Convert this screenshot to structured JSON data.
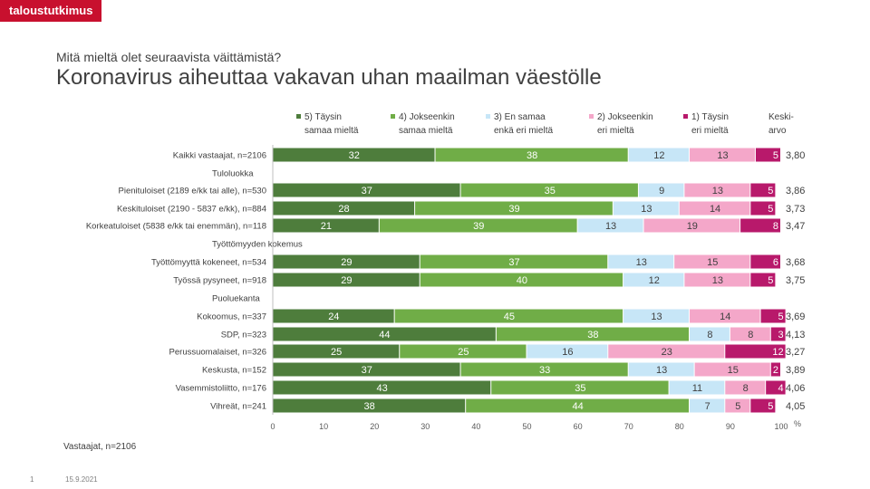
{
  "brand": "taloustutkimus",
  "header": {
    "subtitle": "Mitä mieltä olet seuraavista väittämistä?",
    "title": "Koronavirus aiheuttaa vakavan uhan maailman väestölle"
  },
  "footer": {
    "base": "Vastaajat, n=2106",
    "page": "1",
    "date": "15.9.2021"
  },
  "colors": {
    "series": [
      "#4e7d3c",
      "#70ad47",
      "#c7e6f7",
      "#f4a7c9",
      "#b8196b"
    ],
    "text_dark_bg": "#ffffff",
    "text_light_bg": "#404040"
  },
  "chart_data": {
    "type": "bar",
    "orientation": "horizontal",
    "stacked": true,
    "xlim": [
      0,
      100
    ],
    "xticks": [
      "0",
      "10",
      "20",
      "30",
      "40",
      "50",
      "60",
      "70",
      "80",
      "90",
      "100"
    ],
    "xunit": "%",
    "legend": [
      {
        "name": "5) Täysin samaa mieltä",
        "lines": [
          "5) Täysin",
          "samaa mieltä"
        ]
      },
      {
        "name": "4) Jokseenkin samaa mieltä",
        "lines": [
          "4) Jokseenkin",
          "samaa mieltä"
        ]
      },
      {
        "name": "3) En samaa enkä eri mieltä",
        "lines": [
          "3) En samaa",
          "enkä eri mieltä"
        ]
      },
      {
        "name": "2) Jokseenkin eri mieltä",
        "lines": [
          "2) Jokseenkin",
          "eri mieltä"
        ]
      },
      {
        "name": "1) Täysin eri mieltä",
        "lines": [
          "1) Täysin",
          "eri mieltä"
        ]
      }
    ],
    "mean_header": [
      "Keski-",
      "arvo"
    ],
    "rows": [
      {
        "kind": "bar",
        "label": "Kaikki vastaajat, n=2106",
        "values": [
          32,
          38,
          12,
          13,
          5
        ],
        "mean": "3,80"
      },
      {
        "kind": "group",
        "label": "Tuloluokka"
      },
      {
        "kind": "bar",
        "label": "Pienituloiset (2189 e/kk tai alle), n=530",
        "values": [
          37,
          35,
          9,
          13,
          5
        ],
        "mean": "3,86"
      },
      {
        "kind": "bar",
        "label": "Keskituloiset (2190 - 5837 e/kk), n=884",
        "values": [
          28,
          39,
          13,
          14,
          5
        ],
        "mean": "3,73"
      },
      {
        "kind": "bar",
        "label": "Korkeatuloiset (5838 e/kk tai enemmän), n=118",
        "values": [
          21,
          39,
          13,
          19,
          8
        ],
        "mean": "3,47"
      },
      {
        "kind": "group",
        "label": "Työttömyyden kokemus"
      },
      {
        "kind": "bar",
        "label": "Työttömyyttä kokeneet, n=534",
        "values": [
          29,
          37,
          13,
          15,
          6
        ],
        "mean": "3,68"
      },
      {
        "kind": "bar",
        "label": "Työssä pysyneet, n=918",
        "values": [
          29,
          40,
          12,
          13,
          5
        ],
        "mean": "3,75"
      },
      {
        "kind": "group",
        "label": "Puoluekanta"
      },
      {
        "kind": "bar",
        "label": "Kokoomus, n=337",
        "values": [
          24,
          45,
          13,
          14,
          5
        ],
        "mean": "3,69"
      },
      {
        "kind": "bar",
        "label": "SDP, n=323",
        "values": [
          44,
          38,
          8,
          8,
          3
        ],
        "mean": "4,13"
      },
      {
        "kind": "bar",
        "label": "Perussuomalaiset, n=326",
        "values": [
          25,
          25,
          16,
          23,
          12
        ],
        "mean": "3,27"
      },
      {
        "kind": "bar",
        "label": "Keskusta, n=152",
        "values": [
          37,
          33,
          13,
          15,
          2
        ],
        "mean": "3,89"
      },
      {
        "kind": "bar",
        "label": "Vasemmistoliitto, n=176",
        "values": [
          43,
          35,
          11,
          8,
          4
        ],
        "mean": "4,06"
      },
      {
        "kind": "bar",
        "label": "Vihreät, n=241",
        "values": [
          38,
          44,
          7,
          5,
          5
        ],
        "mean": "4,05"
      }
    ]
  }
}
